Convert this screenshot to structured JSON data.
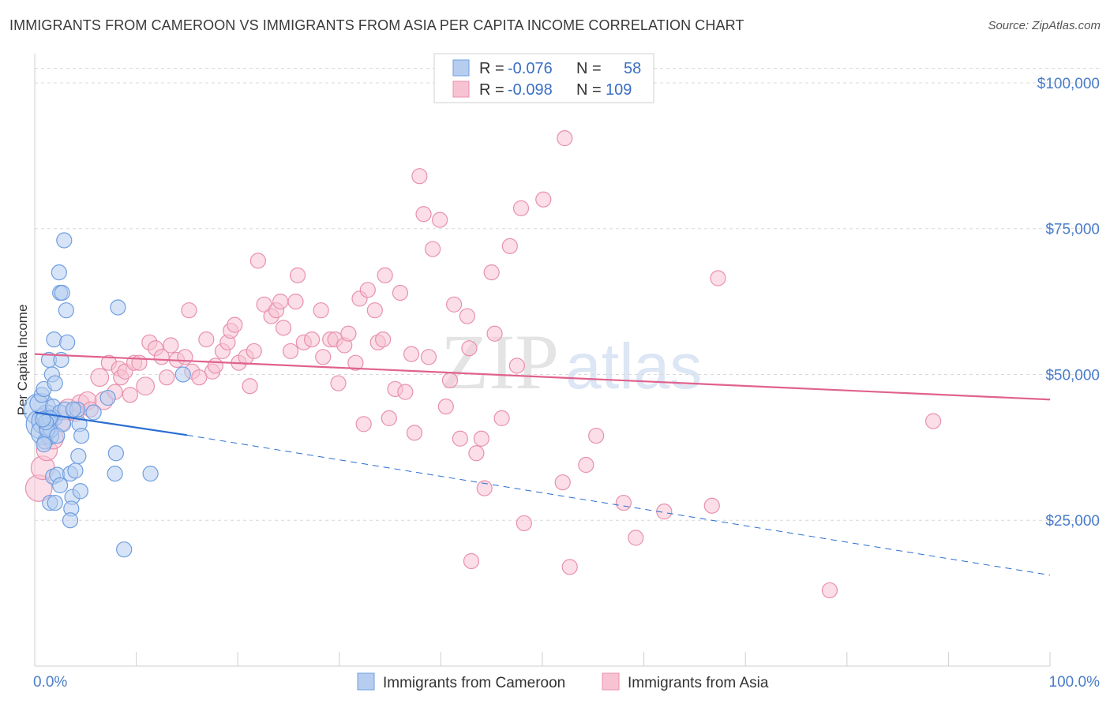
{
  "title": "IMMIGRANTS FROM CAMEROON VS IMMIGRANTS FROM ASIA PER CAPITA INCOME CORRELATION CHART",
  "source": "Source: ZipAtlas.com",
  "watermark": {
    "zip": "ZIP",
    "atlas": "atlas"
  },
  "colors": {
    "cameroon_fill": "#b6cdf0",
    "cameroon_stroke": "#6f9ee0",
    "cameroon_line": "#2a6dd2",
    "asia_fill": "#f7c3d3",
    "asia_stroke": "#e891ad",
    "asia_line": "#e0628e",
    "tick_label": "#4a7cc9",
    "grid": "#d9d9d9"
  },
  "legend": {
    "rows": [
      {
        "series": "cameroon",
        "r_label": "R =",
        "r_value": "-0.076",
        "n_label": "N =",
        "n_value": "58"
      },
      {
        "series": "asia",
        "r_label": "R =",
        "r_value": "-0.098",
        "n_label": "N =",
        "n_value": "109"
      }
    ]
  },
  "chart_data": {
    "type": "scatter",
    "title": "IMMIGRANTS FROM CAMEROON VS IMMIGRANTS FROM ASIA PER CAPITA INCOME CORRELATION CHART",
    "xlabel": "",
    "ylabel": "Per Capita Income",
    "xlim": [
      0,
      100
    ],
    "ylim": [
      0,
      105000
    ],
    "x_tick_labels": [
      {
        "value": 0,
        "label": "0.0%"
      },
      {
        "value": 100,
        "label": "100.0%"
      }
    ],
    "y_ticks": [
      {
        "value": 25000,
        "label": "$25,000"
      },
      {
        "value": 50000,
        "label": "$50,000"
      },
      {
        "value": 75000,
        "label": "$75,000"
      },
      {
        "value": 100000,
        "label": "$100,000"
      }
    ],
    "grid": "horizontal dashed",
    "legend_position": "top-center",
    "series": [
      {
        "name": "Immigrants from Cameroon",
        "r": -0.076,
        "n": 58,
        "trend": {
          "x": [
            0,
            15
          ],
          "y": [
            43500,
            39600
          ],
          "dashed_extension_to": [
            100,
            15600
          ]
        },
        "points": [
          [
            0.5,
            44000,
            22
          ],
          [
            0.6,
            41500,
            20
          ],
          [
            1,
            42000,
            18
          ],
          [
            0.8,
            40000,
            16
          ],
          [
            1.2,
            43000,
            14
          ],
          [
            1.5,
            39500,
            12
          ],
          [
            0.4,
            45000,
            12
          ],
          [
            0.7,
            46500,
            10
          ],
          [
            1.0,
            38500,
            10
          ],
          [
            1.3,
            41000,
            12
          ],
          [
            1.8,
            44500,
            10
          ],
          [
            2.0,
            42500,
            10
          ],
          [
            0.9,
            47500,
            10
          ],
          [
            1.6,
            40500,
            10
          ],
          [
            2.5,
            43500,
            10
          ],
          [
            3.0,
            44000,
            10
          ],
          [
            2.8,
            41500,
            10
          ],
          [
            1.4,
            52500,
            10
          ],
          [
            1.7,
            50000,
            10
          ],
          [
            2.0,
            48500,
            10
          ],
          [
            1.9,
            56000,
            10
          ],
          [
            2.6,
            52500,
            10
          ],
          [
            3.2,
            55500,
            10
          ],
          [
            2.5,
            64000,
            10
          ],
          [
            2.4,
            67500,
            10
          ],
          [
            2.7,
            64000,
            10
          ],
          [
            3.1,
            61000,
            10
          ],
          [
            2.9,
            73000,
            10
          ],
          [
            1.8,
            32500,
            10
          ],
          [
            2.2,
            32800,
            10
          ],
          [
            3.5,
            33000,
            10
          ],
          [
            4.0,
            33500,
            10
          ],
          [
            2.5,
            31000,
            10
          ],
          [
            3.7,
            29000,
            10
          ],
          [
            4.5,
            30000,
            10
          ],
          [
            1.5,
            28000,
            10
          ],
          [
            2.0,
            28000,
            10
          ],
          [
            3.6,
            27000,
            10
          ],
          [
            3.5,
            25000,
            10
          ],
          [
            8.2,
            61500,
            10
          ],
          [
            7.2,
            46000,
            10
          ],
          [
            4.2,
            44000,
            10
          ],
          [
            4.4,
            41500,
            10
          ],
          [
            4.6,
            39500,
            10
          ],
          [
            4.3,
            36000,
            10
          ],
          [
            5.8,
            43500,
            10
          ],
          [
            8.0,
            36500,
            10
          ],
          [
            7.9,
            33000,
            10
          ],
          [
            11.4,
            33000,
            10
          ],
          [
            8.8,
            20000,
            10
          ],
          [
            14.6,
            50000,
            10
          ],
          [
            3.8,
            44000,
            10
          ],
          [
            1.2,
            40500,
            10
          ],
          [
            2.2,
            39500,
            10
          ],
          [
            0.9,
            38000,
            10
          ],
          [
            1.5,
            42500,
            10
          ],
          [
            1.1,
            41800,
            10
          ],
          [
            0.8,
            42300,
            10
          ]
        ]
      },
      {
        "name": "Immigrants from Asia",
        "r": -0.098,
        "n": 109,
        "trend": {
          "x": [
            0,
            100
          ],
          "y": [
            53500,
            45700
          ]
        },
        "points": [
          [
            0.4,
            30500,
            18
          ],
          [
            0.8,
            34000,
            16
          ],
          [
            1.2,
            37000,
            14
          ],
          [
            1.8,
            39000,
            14
          ],
          [
            2.5,
            42000,
            14
          ],
          [
            3.3,
            44000,
            14
          ],
          [
            4.0,
            43500,
            12
          ],
          [
            4.5,
            45000,
            12
          ],
          [
            5.2,
            45500,
            12
          ],
          [
            5.5,
            44000,
            10
          ],
          [
            6.4,
            49500,
            12
          ],
          [
            6.8,
            45500,
            12
          ],
          [
            7.3,
            52000,
            10
          ],
          [
            7.9,
            47000,
            10
          ],
          [
            8.3,
            51000,
            10
          ],
          [
            8.5,
            49500,
            10
          ],
          [
            8.9,
            50500,
            10
          ],
          [
            9.4,
            46500,
            10
          ],
          [
            9.8,
            52000,
            10
          ],
          [
            10.3,
            52000,
            10
          ],
          [
            10.9,
            48000,
            12
          ],
          [
            11.3,
            55500,
            10
          ],
          [
            11.9,
            54500,
            10
          ],
          [
            12.5,
            53000,
            10
          ],
          [
            13.0,
            49500,
            10
          ],
          [
            13.4,
            55000,
            10
          ],
          [
            14.0,
            52500,
            10
          ],
          [
            14.8,
            53000,
            10
          ],
          [
            15.2,
            61000,
            10
          ],
          [
            15.5,
            50500,
            10
          ],
          [
            16.2,
            49500,
            10
          ],
          [
            16.9,
            56000,
            10
          ],
          [
            17.5,
            50500,
            10
          ],
          [
            17.8,
            51500,
            10
          ],
          [
            18.5,
            54000,
            10
          ],
          [
            19.0,
            55500,
            10
          ],
          [
            19.3,
            57500,
            10
          ],
          [
            19.7,
            58500,
            10
          ],
          [
            20.1,
            52000,
            10
          ],
          [
            20.8,
            53000,
            10
          ],
          [
            21.2,
            48000,
            10
          ],
          [
            21.6,
            54000,
            10
          ],
          [
            22.0,
            69500,
            10
          ],
          [
            22.6,
            62000,
            10
          ],
          [
            23.3,
            60000,
            10
          ],
          [
            23.8,
            61000,
            10
          ],
          [
            24.2,
            62500,
            10
          ],
          [
            24.5,
            58000,
            10
          ],
          [
            25.2,
            54000,
            10
          ],
          [
            25.7,
            62500,
            10
          ],
          [
            25.9,
            67000,
            10
          ],
          [
            26.5,
            55500,
            10
          ],
          [
            27.3,
            56000,
            10
          ],
          [
            28.2,
            61000,
            10
          ],
          [
            28.4,
            53000,
            10
          ],
          [
            29.1,
            56000,
            10
          ],
          [
            29.6,
            56000,
            10
          ],
          [
            29.9,
            48500,
            10
          ],
          [
            30.5,
            55000,
            10
          ],
          [
            30.9,
            57000,
            10
          ],
          [
            31.6,
            52000,
            10
          ],
          [
            32.0,
            63000,
            10
          ],
          [
            32.4,
            41500,
            10
          ],
          [
            32.8,
            64500,
            10
          ],
          [
            33.5,
            61000,
            10
          ],
          [
            33.8,
            55500,
            10
          ],
          [
            34.3,
            56000,
            10
          ],
          [
            34.5,
            67000,
            10
          ],
          [
            34.9,
            42500,
            10
          ],
          [
            35.5,
            47500,
            10
          ],
          [
            36.0,
            64000,
            10
          ],
          [
            36.5,
            47000,
            10
          ],
          [
            37.1,
            53500,
            10
          ],
          [
            37.4,
            40000,
            10
          ],
          [
            37.9,
            84000,
            10
          ],
          [
            38.3,
            77500,
            10
          ],
          [
            38.8,
            53000,
            10
          ],
          [
            39.2,
            71500,
            10
          ],
          [
            39.9,
            76500,
            10
          ],
          [
            40.5,
            44500,
            10
          ],
          [
            40.9,
            49000,
            10
          ],
          [
            41.3,
            62000,
            10
          ],
          [
            41.9,
            39000,
            10
          ],
          [
            42.6,
            60000,
            10
          ],
          [
            42.8,
            54500,
            10
          ],
          [
            43.5,
            36500,
            10
          ],
          [
            44.0,
            39000,
            10
          ],
          [
            44.3,
            30500,
            10
          ],
          [
            45.0,
            67500,
            10
          ],
          [
            45.3,
            57000,
            10
          ],
          [
            46.0,
            42500,
            10
          ],
          [
            46.8,
            72000,
            10
          ],
          [
            47.5,
            51500,
            10
          ],
          [
            47.9,
            78500,
            10
          ],
          [
            48.2,
            24500,
            10
          ],
          [
            50.1,
            80000,
            10
          ],
          [
            52.0,
            31500,
            10
          ],
          [
            52.2,
            90500,
            10
          ],
          [
            52.7,
            17000,
            10
          ],
          [
            54.3,
            34500,
            10
          ],
          [
            55.3,
            39500,
            10
          ],
          [
            58.0,
            28000,
            10
          ],
          [
            59.2,
            22000,
            10
          ],
          [
            62.0,
            26500,
            10
          ],
          [
            66.7,
            27500,
            10
          ],
          [
            67.3,
            66500,
            10
          ],
          [
            78.3,
            13000,
            10
          ],
          [
            88.5,
            42000,
            10
          ],
          [
            43.0,
            18000,
            10
          ]
        ]
      }
    ]
  },
  "bottom_legend": {
    "items": [
      {
        "series": "cameroon",
        "label": "Immigrants from Cameroon"
      },
      {
        "series": "asia",
        "label": "Immigrants from Asia"
      }
    ]
  }
}
